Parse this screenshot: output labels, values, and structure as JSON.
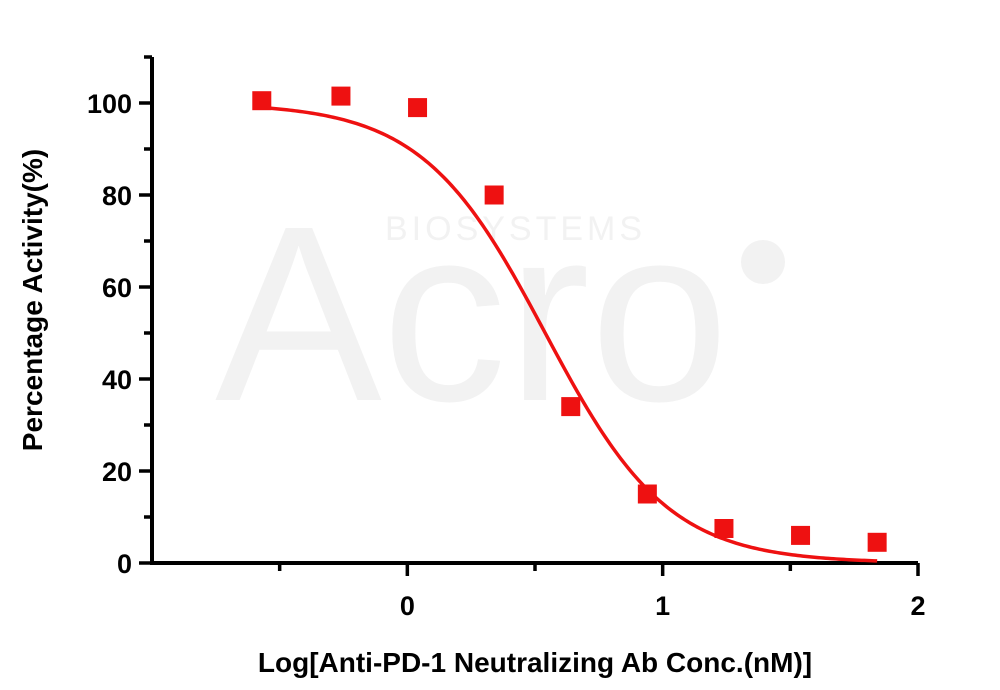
{
  "chart_data": {
    "type": "scatter",
    "xlabel": "Log[Anti-PD-1 Neutralizing Ab Conc.(nM)]",
    "ylabel": "Percentage Activity(%)",
    "xlim": [
      -1,
      2
    ],
    "ylim": [
      0,
      110
    ],
    "x_ticks": [
      0,
      1,
      2
    ],
    "y_ticks": [
      0,
      20,
      40,
      60,
      80,
      100
    ],
    "x_tick_labels": [
      "0",
      "1",
      "2"
    ],
    "y_tick_labels": [
      "0",
      "20",
      "40",
      "60",
      "80",
      "100"
    ],
    "grid": false,
    "legend": "none",
    "marker": "square",
    "color": "#ee1111",
    "watermark": {
      "brand": "Acro",
      "tagline": "BIOSYSTEMS"
    },
    "series": [
      {
        "points": [
          {
            "x": -0.57,
            "y": 100.5
          },
          {
            "x": -0.26,
            "y": 101.5
          },
          {
            "x": 0.04,
            "y": 99.0
          },
          {
            "x": 0.34,
            "y": 80.0
          },
          {
            "x": 0.64,
            "y": 34.0
          },
          {
            "x": 0.94,
            "y": 15.0
          },
          {
            "x": 1.24,
            "y": 7.5
          },
          {
            "x": 1.54,
            "y": 6.0
          },
          {
            "x": 1.84,
            "y": 4.5
          }
        ],
        "fit": {
          "model": "four-parameter logistic",
          "top": 100,
          "bottom": 0,
          "log_ic50": 0.54,
          "hill_slope": -1.8,
          "x_range": [
            -0.57,
            1.84
          ]
        }
      }
    ]
  }
}
